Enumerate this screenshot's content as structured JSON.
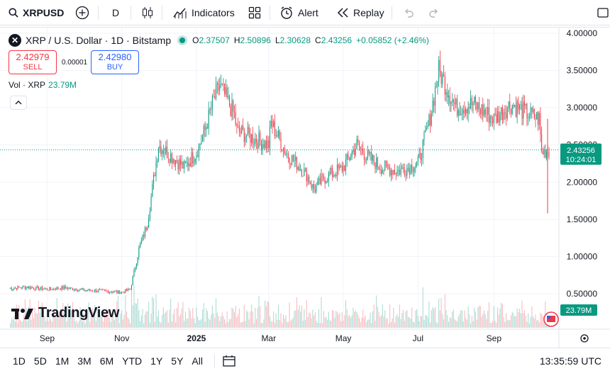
{
  "toolbar": {
    "symbol": "XRPUSD",
    "interval": "D",
    "indicators_label": "Indicators",
    "alert_label": "Alert",
    "replay_label": "Replay",
    "icons": [
      "search-icon",
      "add-compare-icon",
      "candles-icon",
      "indicators-icon",
      "layouts-icon",
      "alert-icon",
      "replay-icon",
      "undo-icon",
      "redo-icon",
      "fullscreen-icon"
    ]
  },
  "legend": {
    "title": "XRP / U.S. Dollar · 1D · Bitstamp",
    "o_label": "O",
    "o": "2.37507",
    "h_label": "H",
    "h": "2.50896",
    "l_label": "L",
    "l": "2.30628",
    "c_label": "C",
    "c": "2.43256",
    "change": "+0.05852 (+2.46%)"
  },
  "trade": {
    "sell_price": "2.42979",
    "sell_label": "SELL",
    "spread": "0.00001",
    "buy_price": "2.42980",
    "buy_label": "BUY"
  },
  "volume": {
    "label": "Vol · XRP",
    "value": "23.79M"
  },
  "price_tag": {
    "price": "2.43256",
    "countdown": "10:24:01"
  },
  "volume_tag": "23.79M",
  "logo_text": "TradingView",
  "range_buttons": [
    "1D",
    "5D",
    "1M",
    "3M",
    "6M",
    "YTD",
    "1Y",
    "5Y",
    "All"
  ],
  "clock": "13:35:59 UTC",
  "colors": {
    "up": "#089981",
    "down": "#f23645",
    "accent": "#2962ff",
    "grid": "#f0f3fa"
  },
  "chart_data": {
    "type": "candlestick",
    "title": "XRP / U.S. Dollar · 1D · Bitstamp",
    "y_ticks": [
      "4.00000",
      "3.50000",
      "3.00000",
      "2.50000",
      "2.00000",
      "1.50000",
      "1.00000",
      "0.50000"
    ],
    "ylim": [
      0.0,
      4.0
    ],
    "x_ticks": [
      "Sep",
      "Nov",
      "2025",
      "Mar",
      "May",
      "Jul",
      "Sep"
    ],
    "grid": true,
    "last_price": 2.43256,
    "series": [
      {
        "name": "XRP",
        "x": [
          "2024-08-01",
          "2024-08-15",
          "2024-09-01",
          "2024-09-15",
          "2024-10-01",
          "2024-10-15",
          "2024-11-01",
          "2024-11-08",
          "2024-11-15",
          "2024-11-22",
          "2024-12-01",
          "2024-12-08",
          "2024-12-15",
          "2024-12-22",
          "2025-01-01",
          "2025-01-08",
          "2025-01-15",
          "2025-01-20",
          "2025-02-01",
          "2025-02-03",
          "2025-02-15",
          "2025-03-01",
          "2025-03-03",
          "2025-03-15",
          "2025-04-01",
          "2025-04-07",
          "2025-04-15",
          "2025-05-01",
          "2025-05-12",
          "2025-05-20",
          "2025-06-01",
          "2025-06-15",
          "2025-07-01",
          "2025-07-10",
          "2025-07-18",
          "2025-08-01",
          "2025-08-15",
          "2025-09-01",
          "2025-09-15",
          "2025-10-01",
          "2025-10-08",
          "2025-10-10",
          "2025-10-16"
        ],
        "close": [
          0.57,
          0.59,
          0.56,
          0.58,
          0.55,
          0.54,
          0.52,
          0.56,
          1.1,
          1.45,
          2.5,
          2.4,
          2.3,
          2.2,
          2.4,
          2.7,
          3.1,
          3.3,
          2.9,
          2.7,
          2.6,
          2.5,
          2.8,
          2.4,
          2.1,
          1.9,
          2.05,
          2.2,
          2.5,
          2.35,
          2.2,
          2.15,
          2.25,
          2.8,
          3.5,
          3.0,
          3.05,
          2.85,
          3.05,
          2.9,
          2.85,
          2.4,
          2.43
        ]
      }
    ]
  }
}
